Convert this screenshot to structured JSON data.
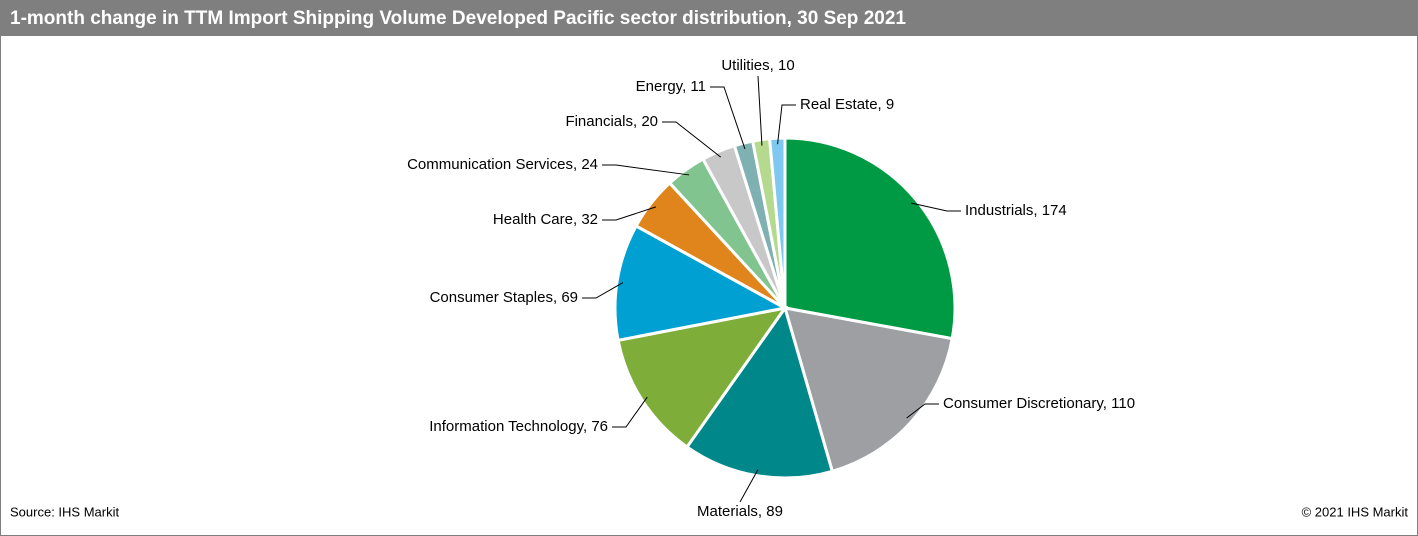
{
  "chart_data": {
    "type": "pie",
    "title": "1-month change in TTM Import Shipping Volume Developed Pacific sector distribution, 30 Sep 2021",
    "categories": [
      "Industrials",
      "Consumer Discretionary",
      "Materials",
      "Information Technology",
      "Consumer Staples",
      "Health Care",
      "Communication Services",
      "Financials",
      "Energy",
      "Utilities",
      "Real Estate"
    ],
    "values": [
      174,
      110,
      89,
      76,
      69,
      32,
      24,
      20,
      11,
      10,
      9
    ],
    "colors": [
      "#009a44",
      "#9d9fa2",
      "#00878a",
      "#7fad39",
      "#00a0d2",
      "#e0851c",
      "#82c48f",
      "#c8c8c8",
      "#7fb0b2",
      "#b5d98e",
      "#7fc8ef"
    ]
  },
  "footer": {
    "source": "Source: IHS Markit",
    "copyright": "© 2021 IHS Markit"
  }
}
